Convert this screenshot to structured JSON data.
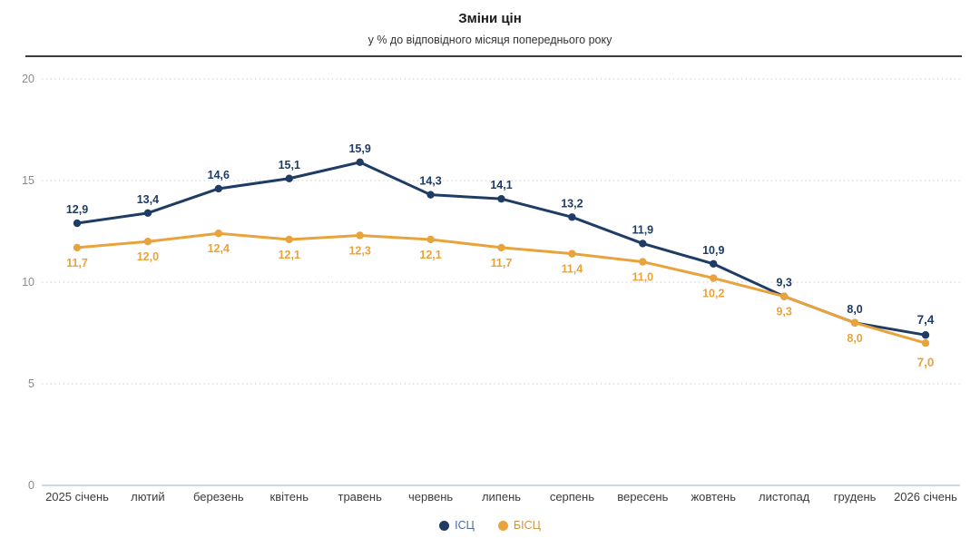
{
  "chart_data": {
    "type": "line",
    "title": "Зміни цін",
    "subtitle": "у % до відповідного місяця попереднього року",
    "categories": [
      "2025 січень",
      "лютий",
      "березень",
      "квітень",
      "травень",
      "червень",
      "липень",
      "серпень",
      "вересень",
      "жовтень",
      "листопад",
      "грудень",
      "2026 січень"
    ],
    "series": [
      {
        "id": "cpi",
        "name": "ІСЦ",
        "color": "#1e3c64",
        "legend_text_color": "#4a6e96",
        "label_position": "above",
        "values": [
          12.9,
          13.4,
          14.6,
          15.1,
          15.9,
          14.3,
          14.1,
          13.2,
          11.9,
          10.9,
          9.3,
          8.0,
          7.4
        ]
      },
      {
        "id": "core-cpi",
        "name": "БІСЦ",
        "color": "#e8a33d",
        "legend_text_color": "#cf9440",
        "label_position": "below",
        "values": [
          11.7,
          12.0,
          12.4,
          12.1,
          12.3,
          12.1,
          11.7,
          11.4,
          11.0,
          10.2,
          9.3,
          8.0,
          7.0
        ]
      }
    ],
    "ylim": [
      0,
      20
    ],
    "yticks": [
      0,
      5,
      10,
      15,
      20
    ],
    "grid": "dotted-horizontal",
    "legend_position": "bottom-center",
    "decimal_separator": ",",
    "emphasize_last_label": true
  },
  "colors": {
    "background": "#ffffff",
    "title": "#1a1a1a",
    "subtitle": "#333333",
    "separator": "#3b3b3b",
    "grid": "#d4d4d4",
    "baseline": "#ccd9e6",
    "y_label": "#8a8a8a",
    "x_label": "#3c3c3c"
  }
}
